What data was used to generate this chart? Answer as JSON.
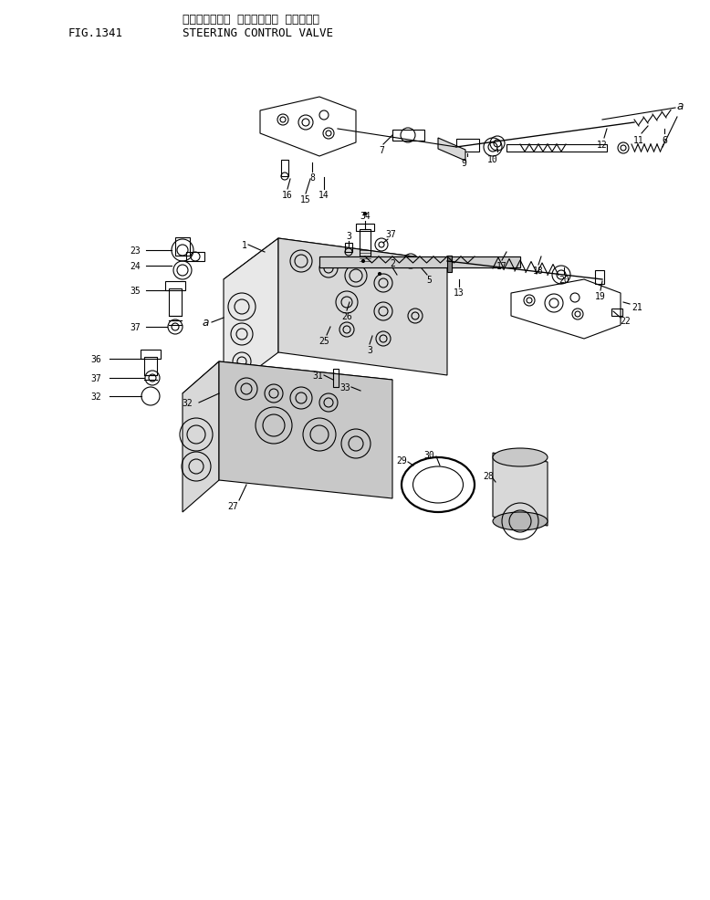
{
  "title_jp": "ステアリング゚ コントロール パルプ",
  "title_en": "STEERING CONTROL VALVE",
  "fig_label": "FIG.1341",
  "bg_color": "#ffffff",
  "line_color": "#000000",
  "label_color": "#000000",
  "font_size": 8,
  "title_font_size": 9
}
